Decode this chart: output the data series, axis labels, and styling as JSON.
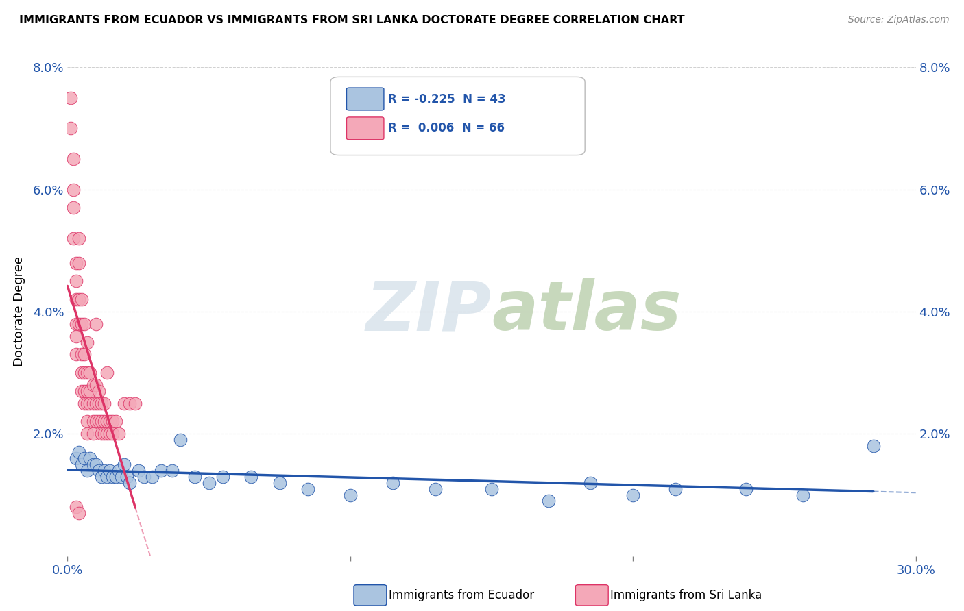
{
  "title": "IMMIGRANTS FROM ECUADOR VS IMMIGRANTS FROM SRI LANKA DOCTORATE DEGREE CORRELATION CHART",
  "source": "Source: ZipAtlas.com",
  "ylabel": "Doctorate Degree",
  "xlim": [
    0.0,
    0.3
  ],
  "ylim": [
    0.0,
    0.08
  ],
  "yticks": [
    0.0,
    0.02,
    0.04,
    0.06,
    0.08
  ],
  "ytick_labels": [
    "",
    "2.0%",
    "4.0%",
    "6.0%",
    "8.0%"
  ],
  "ecuador_R": -0.225,
  "ecuador_N": 43,
  "srilanka_R": 0.006,
  "srilanka_N": 66,
  "ecuador_color": "#aac4e0",
  "srilanka_color": "#f4a8b8",
  "ecuador_line_color": "#2255aa",
  "srilanka_line_color": "#dd3366",
  "legend_text_color": "#2255aa",
  "ecuador_x": [
    0.003,
    0.004,
    0.005,
    0.006,
    0.007,
    0.008,
    0.009,
    0.01,
    0.011,
    0.012,
    0.013,
    0.014,
    0.015,
    0.016,
    0.017,
    0.018,
    0.019,
    0.02,
    0.021,
    0.022,
    0.025,
    0.027,
    0.03,
    0.033,
    0.037,
    0.04,
    0.045,
    0.05,
    0.055,
    0.065,
    0.075,
    0.085,
    0.1,
    0.115,
    0.13,
    0.15,
    0.17,
    0.185,
    0.2,
    0.215,
    0.24,
    0.26,
    0.285
  ],
  "ecuador_y": [
    0.016,
    0.017,
    0.015,
    0.016,
    0.014,
    0.016,
    0.015,
    0.015,
    0.014,
    0.013,
    0.014,
    0.013,
    0.014,
    0.013,
    0.013,
    0.014,
    0.013,
    0.015,
    0.013,
    0.012,
    0.014,
    0.013,
    0.013,
    0.014,
    0.014,
    0.019,
    0.013,
    0.012,
    0.013,
    0.013,
    0.012,
    0.011,
    0.01,
    0.012,
    0.011,
    0.011,
    0.009,
    0.012,
    0.01,
    0.011,
    0.011,
    0.01,
    0.018
  ],
  "srilanka_x": [
    0.001,
    0.001,
    0.002,
    0.002,
    0.002,
    0.002,
    0.003,
    0.003,
    0.003,
    0.003,
    0.003,
    0.003,
    0.004,
    0.004,
    0.004,
    0.004,
    0.005,
    0.005,
    0.005,
    0.005,
    0.005,
    0.006,
    0.006,
    0.006,
    0.006,
    0.006,
    0.007,
    0.007,
    0.007,
    0.007,
    0.007,
    0.007,
    0.008,
    0.008,
    0.008,
    0.009,
    0.009,
    0.009,
    0.009,
    0.01,
    0.01,
    0.01,
    0.011,
    0.011,
    0.011,
    0.012,
    0.012,
    0.012,
    0.013,
    0.013,
    0.013,
    0.014,
    0.014,
    0.015,
    0.015,
    0.016,
    0.016,
    0.017,
    0.018,
    0.02,
    0.022,
    0.024,
    0.014,
    0.01,
    0.003,
    0.004
  ],
  "srilanka_y": [
    0.075,
    0.07,
    0.065,
    0.06,
    0.057,
    0.052,
    0.048,
    0.045,
    0.042,
    0.038,
    0.036,
    0.033,
    0.052,
    0.048,
    0.042,
    0.038,
    0.042,
    0.038,
    0.033,
    0.03,
    0.027,
    0.038,
    0.033,
    0.03,
    0.027,
    0.025,
    0.035,
    0.03,
    0.027,
    0.025,
    0.022,
    0.02,
    0.03,
    0.027,
    0.025,
    0.028,
    0.025,
    0.022,
    0.02,
    0.028,
    0.025,
    0.022,
    0.027,
    0.025,
    0.022,
    0.025,
    0.022,
    0.02,
    0.025,
    0.022,
    0.02,
    0.022,
    0.02,
    0.022,
    0.02,
    0.022,
    0.02,
    0.022,
    0.02,
    0.025,
    0.025,
    0.025,
    0.03,
    0.038,
    0.008,
    0.007
  ]
}
